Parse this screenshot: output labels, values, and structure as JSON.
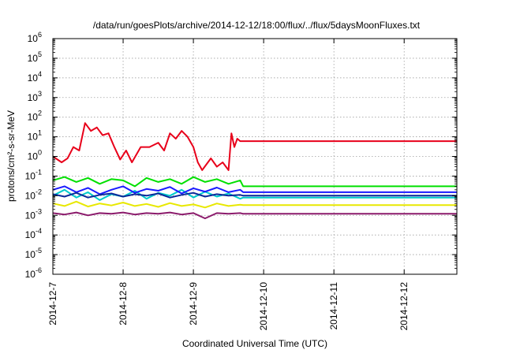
{
  "chart_data": {
    "type": "line",
    "title": "/data/run/goesPlots/archive/2014-12-12/18:00/flux/../flux/5daysMoonFluxes.txt",
    "xlabel": "Coordinated Universal Time (UTC)",
    "ylabel": "protons/cm²-s-sr-MeV",
    "xlim": [
      "2014-12-07",
      "2014-12-12 18:00"
    ],
    "ylim": [
      1e-06,
      1000000.0
    ],
    "yscale": "log",
    "grid": true,
    "legend": "none",
    "x_ticks": [
      "2014-12-7",
      "2014-12-8",
      "2014-12-9",
      "2014-12-10",
      "2014-12-11",
      "2014-12-12"
    ],
    "y_ticks": [
      {
        "base": "10",
        "exp": "-6"
      },
      {
        "base": "10",
        "exp": "-5"
      },
      {
        "base": "10",
        "exp": "-4"
      },
      {
        "base": "10",
        "exp": "-3"
      },
      {
        "base": "10",
        "exp": "-2"
      },
      {
        "base": "10",
        "exp": "-1"
      },
      {
        "base": "10",
        "exp": "0"
      },
      {
        "base": "10",
        "exp": "1"
      },
      {
        "base": "10",
        "exp": "2"
      },
      {
        "base": "10",
        "exp": "3"
      },
      {
        "base": "10",
        "exp": "4"
      },
      {
        "base": "10",
        "exp": "5"
      },
      {
        "base": "10",
        "exp": "6"
      }
    ],
    "series": [
      {
        "color": "#e8001a",
        "x": [
          "2014-12-07 00:00",
          "2014-12-07 03:00",
          "2014-12-07 05:00",
          "2014-12-07 07:00",
          "2014-12-07 09:00",
          "2014-12-07 11:00",
          "2014-12-07 13:00",
          "2014-12-07 15:00",
          "2014-12-07 17:00",
          "2014-12-07 19:00",
          "2014-12-07 21:00",
          "2014-12-07 23:00",
          "2014-12-08 01:00",
          "2014-12-08 03:00",
          "2014-12-08 06:00",
          "2014-12-08 09:00",
          "2014-12-08 12:00",
          "2014-12-08 14:00",
          "2014-12-08 16:00",
          "2014-12-08 18:00",
          "2014-12-08 20:00",
          "2014-12-08 22:00",
          "2014-12-09 00:00",
          "2014-12-09 01:30",
          "2014-12-09 03:00",
          "2014-12-09 06:00",
          "2014-12-09 08:00",
          "2014-12-09 10:00",
          "2014-12-09 12:00",
          "2014-12-09 13:00",
          "2014-12-09 14:00",
          "2014-12-09 15:00",
          "2014-12-09 16:00",
          "2014-12-09 17:00",
          "2014-12-12 18:00"
        ],
        "y": [
          1.0,
          0.5,
          0.8,
          3.0,
          2.0,
          50,
          20,
          30,
          12,
          15,
          3,
          0.7,
          2.0,
          0.5,
          3.0,
          3.0,
          5.0,
          2.0,
          15,
          8,
          20,
          10,
          3.0,
          0.5,
          0.2,
          0.8,
          0.3,
          0.5,
          0.2,
          15,
          3.0,
          8.0,
          6.0,
          6.0,
          6.0
        ]
      },
      {
        "color": "#00e000",
        "x": [
          "2014-12-07 00:00",
          "2014-12-07 04:00",
          "2014-12-07 08:00",
          "2014-12-07 12:00",
          "2014-12-07 16:00",
          "2014-12-07 20:00",
          "2014-12-08 00:00",
          "2014-12-08 04:00",
          "2014-12-08 08:00",
          "2014-12-08 12:00",
          "2014-12-08 16:00",
          "2014-12-08 20:00",
          "2014-12-09 00:00",
          "2014-12-09 04:00",
          "2014-12-09 08:00",
          "2014-12-09 12:00",
          "2014-12-09 16:00",
          "2014-12-09 17:00",
          "2014-12-12 18:00"
        ],
        "y": [
          0.06,
          0.09,
          0.05,
          0.08,
          0.04,
          0.07,
          0.06,
          0.03,
          0.08,
          0.05,
          0.07,
          0.04,
          0.09,
          0.05,
          0.07,
          0.04,
          0.06,
          0.03,
          0.03
        ]
      },
      {
        "color": "#00cccc",
        "x": [
          "2014-12-07 00:00",
          "2014-12-07 04:00",
          "2014-12-07 08:00",
          "2014-12-07 12:00",
          "2014-12-07 16:00",
          "2014-12-07 20:00",
          "2014-12-08 00:00",
          "2014-12-08 04:00",
          "2014-12-08 08:00",
          "2014-12-08 12:00",
          "2014-12-08 16:00",
          "2014-12-08 20:00",
          "2014-12-09 00:00",
          "2014-12-09 04:00",
          "2014-12-09 08:00",
          "2014-12-09 12:00",
          "2014-12-09 16:00",
          "2014-12-09 17:00",
          "2014-12-12 18:00"
        ],
        "y": [
          0.01,
          0.02,
          0.008,
          0.015,
          0.006,
          0.012,
          0.009,
          0.018,
          0.007,
          0.014,
          0.01,
          0.02,
          0.008,
          0.016,
          0.009,
          0.013,
          0.007,
          0.008,
          0.008
        ]
      },
      {
        "color": "#1a1aff",
        "x": [
          "2014-12-07 00:00",
          "2014-12-07 04:00",
          "2014-12-07 08:00",
          "2014-12-07 12:00",
          "2014-12-07 16:00",
          "2014-12-07 20:00",
          "2014-12-08 00:00",
          "2014-12-08 04:00",
          "2014-12-08 08:00",
          "2014-12-08 12:00",
          "2014-12-08 16:00",
          "2014-12-08 20:00",
          "2014-12-09 00:00",
          "2014-12-09 04:00",
          "2014-12-09 08:00",
          "2014-12-09 12:00",
          "2014-12-09 16:00",
          "2014-12-09 17:00",
          "2014-12-12 18:00"
        ],
        "y": [
          0.02,
          0.03,
          0.015,
          0.025,
          0.012,
          0.02,
          0.03,
          0.014,
          0.022,
          0.018,
          0.028,
          0.013,
          0.024,
          0.016,
          0.026,
          0.015,
          0.02,
          0.015,
          0.015
        ]
      },
      {
        "color": "#0a2a9a",
        "x": [
          "2014-12-07 00:00",
          "2014-12-07 04:00",
          "2014-12-07 08:00",
          "2014-12-07 12:00",
          "2014-12-07 16:00",
          "2014-12-07 20:00",
          "2014-12-08 00:00",
          "2014-12-08 04:00",
          "2014-12-08 08:00",
          "2014-12-08 12:00",
          "2014-12-08 16:00",
          "2014-12-08 20:00",
          "2014-12-09 00:00",
          "2014-12-09 04:00",
          "2014-12-09 08:00",
          "2014-12-09 12:00",
          "2014-12-09 16:00",
          "2014-12-09 17:00",
          "2014-12-12 18:00"
        ],
        "y": [
          0.012,
          0.009,
          0.014,
          0.008,
          0.011,
          0.013,
          0.009,
          0.012,
          0.01,
          0.013,
          0.008,
          0.011,
          0.014,
          0.009,
          0.012,
          0.01,
          0.011,
          0.01,
          0.01
        ]
      },
      {
        "color": "#e8e800",
        "x": [
          "2014-12-07 00:00",
          "2014-12-07 04:00",
          "2014-12-07 08:00",
          "2014-12-07 12:00",
          "2014-12-07 16:00",
          "2014-12-07 20:00",
          "2014-12-08 00:00",
          "2014-12-08 04:00",
          "2014-12-08 08:00",
          "2014-12-08 12:00",
          "2014-12-08 16:00",
          "2014-12-08 20:00",
          "2014-12-09 00:00",
          "2014-12-09 04:00",
          "2014-12-09 08:00",
          "2014-12-09 12:00",
          "2014-12-09 16:00",
          "2014-12-09 17:00",
          "2014-12-12 18:00"
        ],
        "y": [
          0.004,
          0.003,
          0.005,
          0.0028,
          0.004,
          0.0032,
          0.0045,
          0.003,
          0.0038,
          0.0027,
          0.0042,
          0.003,
          0.0036,
          0.0025,
          0.004,
          0.003,
          0.0035,
          0.0033,
          0.0033
        ]
      },
      {
        "color": "#8b1a6b",
        "x": [
          "2014-12-07 00:00",
          "2014-12-07 04:00",
          "2014-12-07 08:00",
          "2014-12-07 12:00",
          "2014-12-07 16:00",
          "2014-12-07 20:00",
          "2014-12-08 00:00",
          "2014-12-08 04:00",
          "2014-12-08 08:00",
          "2014-12-08 12:00",
          "2014-12-08 16:00",
          "2014-12-08 20:00",
          "2014-12-09 00:00",
          "2014-12-09 04:00",
          "2014-12-09 08:00",
          "2014-12-09 12:00",
          "2014-12-09 16:00",
          "2014-12-09 17:00",
          "2014-12-12 18:00"
        ],
        "y": [
          0.0013,
          0.0011,
          0.0014,
          0.001,
          0.0013,
          0.0012,
          0.0014,
          0.0011,
          0.0013,
          0.0012,
          0.0014,
          0.0011,
          0.0013,
          0.0007,
          0.0013,
          0.0012,
          0.0013,
          0.0012,
          0.0012
        ]
      }
    ]
  }
}
